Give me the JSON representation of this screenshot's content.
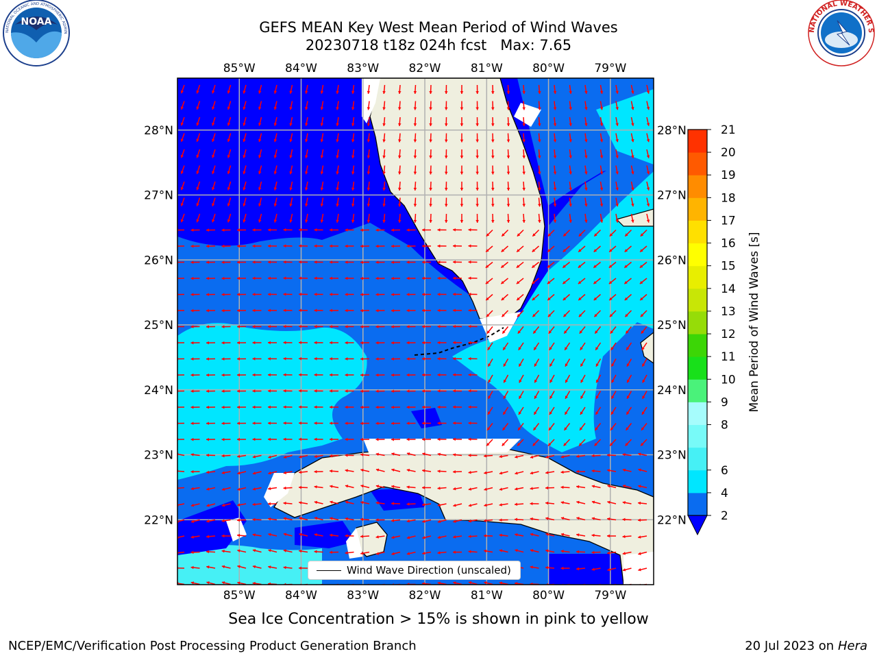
{
  "title": {
    "line1": "GEFS MEAN Key West Mean Period of Wind Waves",
    "line2": "20230718 t18z 024h fcst   Max: 7.65"
  },
  "logos": {
    "left": {
      "name": "noaa-logo",
      "text": "NOAA",
      "ring_text": "NATIONAL OCEANIC AND ATMOSPHERIC ADMINISTRATION · U.S. DEPARTMENT OF COMMERCE"
    },
    "right": {
      "name": "nws-logo",
      "ring_text": "NATIONAL WEATHER SERVICE"
    }
  },
  "map": {
    "lon_labels": [
      "85°W",
      "84°W",
      "83°W",
      "82°W",
      "81°W",
      "80°W",
      "79°W"
    ],
    "lat_labels": [
      "28°N",
      "27°N",
      "26°N",
      "25°N",
      "24°N",
      "23°N",
      "22°N"
    ],
    "lon_range": [
      -86.0,
      -78.3
    ],
    "lat_range": [
      21.0,
      28.8
    ],
    "legend_label": "Wind Wave Direction (unscaled)",
    "arrow_color": "#ff0000",
    "land_color": "#efefdf",
    "coastline_color": "#000000"
  },
  "colorbar": {
    "label": "Mean Period of Wind Waves [s]",
    "levels": [
      2,
      4,
      6,
      7,
      8,
      9,
      10,
      11,
      12,
      13,
      14,
      15,
      16,
      17,
      18,
      19,
      20,
      21
    ],
    "tick_labels": [
      "2",
      "4",
      "6",
      "8",
      "9",
      "10",
      "11",
      "12",
      "13",
      "14",
      "15",
      "16",
      "17",
      "18",
      "19",
      "20",
      "21"
    ],
    "colors": [
      "#0a6cf0",
      "#00e6ff",
      "#46f0f5",
      "#78faf8",
      "#a6fcfc",
      "#4af27a",
      "#18e01a",
      "#3cd606",
      "#96dc08",
      "#c8e606",
      "#e8ee00",
      "#ffff00",
      "#ffe000",
      "#ffb400",
      "#ff8c00",
      "#ff5a00",
      "#ff3200",
      "#ff0a00"
    ],
    "under_color": "#0000ff",
    "extend": "min"
  },
  "chart_data": {
    "type": "heatmap",
    "title": "GEFS MEAN Key West Mean Period of Wind Waves",
    "subtitle": "20230718 t18z 024h fcst   Max: 7.65",
    "xlabel": "",
    "ylabel": "",
    "colorbar_label": "Mean Period of Wind Waves [s]",
    "max": 7.65,
    "zones": [
      {
        "region": "Gulf north of 26°N",
        "class": "<2"
      },
      {
        "region": "Gulf 25–26°N",
        "class": "2-4"
      },
      {
        "region": "Gulf 23.3–25°N west of 83°W",
        "class": "4-6"
      },
      {
        "region": "Florida Straits",
        "class": "2-4"
      },
      {
        "region": "Atlantic east of Florida",
        "class": "4-6"
      }
    ]
  },
  "footer": {
    "sea_ice_note": "Sea Ice Concentration > 15% is shown in pink to yellow",
    "left": "NCEP/EMC/Verification Post Processing Product Generation Branch",
    "right_date": "20 Jul 2023 on ",
    "right_machine": "Hera"
  }
}
